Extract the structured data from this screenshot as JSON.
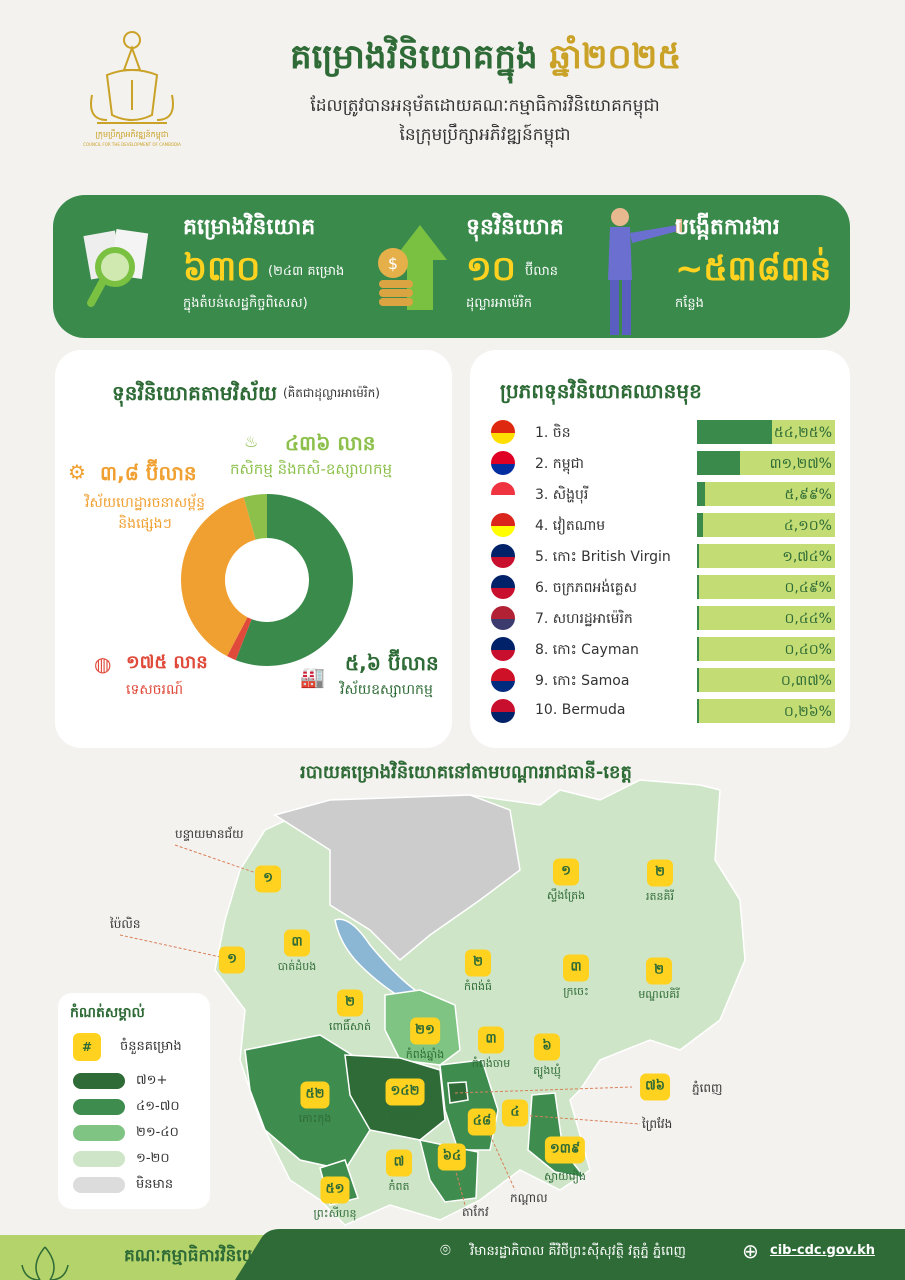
{
  "header": {
    "logo_text": "ក្រុមប្រឹក្សាអភិវឌ្ឍន៍កម្ពុជា",
    "logo_subtext": "COUNCIL FOR THE DEVELOPMENT OF CAMBODIA",
    "title": "គម្រោងវិនិយោគក្នុង",
    "title_year": "ឆ្នាំ២០២៥",
    "subtitle1": "ដែលត្រូវបានអនុម័តដោយគណៈកម្មាធិការវិនិយោគកម្ពុជា",
    "subtitle2": "នៃក្រុមប្រឹក្សាអភិវឌ្ឍន៍កម្ពុជា"
  },
  "stats": [
    {
      "heading": "គម្រោងវិនិយោគ",
      "value": "៦៣០",
      "unit": "(២៤៣ គម្រោង",
      "note": "ក្នុងតំបន់សេដ្ឋកិច្ចពិសេស)",
      "icon": "document-magnifier-icon"
    },
    {
      "heading": "ទុនវិនិយោគ",
      "value": "១០",
      "unit": "ប៊ីលាន",
      "note": "ដុល្លារអាម៉េរិក",
      "icon": "coins-arrow-up-icon"
    },
    {
      "heading": "បង្កើតការងារ",
      "value": "~៥៣៨៣ន់",
      "unit": "",
      "note": "កន្លែង",
      "icon": "businessman-icon"
    }
  ],
  "sector": {
    "title": "ទុនវិនិយោគតាមវិស័យ",
    "title_note": "(គិតជាដុល្លារអាម៉េរិក)",
    "items": [
      {
        "value_label": "៥,៦ ប៊ីលាន",
        "name": "វិស័យឧស្សាហកម្ម",
        "color": "#3a8a4c",
        "icon": "factory-icon"
      },
      {
        "value_label": "១៧៥ លាន",
        "name": "ទេសចរណ៍",
        "color": "#e04a3a",
        "icon": "globe-icon"
      },
      {
        "value_label": "៣,៨ ប៊ីលាន",
        "name": "វិស័យហេដ្ឋារចនាសម្ព័ន្ធ និងផ្សេងៗ",
        "color": "#f0a030",
        "icon": "gear-building-icon"
      },
      {
        "value_label": "៤៣៦ លាន",
        "name": "កសិកម្ម និងកសិ-ឧស្សាហកម្ម",
        "color": "#8cc04b",
        "icon": "plant-icon"
      }
    ]
  },
  "chart_data": {
    "type": "pie",
    "donut": true,
    "unit": "USD",
    "categories": [
      "វិស័យឧស្សាហកម្ម",
      "ទេសចរណ៍",
      "វិស័យហេដ្ឋារចនាសម្ព័ន្ធ និងផ្សេងៗ",
      "កសិកម្ម និងកសិ-ឧស្សាហកម្ម"
    ],
    "values": [
      5600000000,
      175000000,
      3800000000,
      436000000
    ]
  },
  "ranking": {
    "title": "ប្រភពទុនវិនិយោគឈានមុខ",
    "items": [
      {
        "label": "1. ចិន",
        "pct_label": "៥៤,២៥%",
        "pct": 54.25,
        "flag": "china-flag-icon",
        "colors": [
          "#de2910",
          "#ffde00"
        ]
      },
      {
        "label": "2. កម្ពុជា",
        "pct_label": "៣១,២៧%",
        "pct": 31.27,
        "flag": "cambodia-flag-icon",
        "colors": [
          "#e00025",
          "#032ea1"
        ]
      },
      {
        "label": "3. សិង្ហបុរី",
        "pct_label": "៥,៩៩%",
        "pct": 5.99,
        "flag": "singapore-flag-icon",
        "colors": [
          "#ef3340",
          "#ffffff"
        ]
      },
      {
        "label": "4. វៀតណាម",
        "pct_label": "៤,១០%",
        "pct": 4.1,
        "flag": "vietnam-flag-icon",
        "colors": [
          "#da251d",
          "#ffff00"
        ]
      },
      {
        "label": "5. កោះ British Virgin",
        "pct_label": "១,៧៤%",
        "pct": 1.74,
        "flag": "bvi-flag-icon",
        "colors": [
          "#012169",
          "#c8102e"
        ]
      },
      {
        "label": "6. ចក្រភពអង់គ្លេស",
        "pct_label": "០,៤៩%",
        "pct": 0.49,
        "flag": "uk-flag-icon",
        "colors": [
          "#012169",
          "#c8102e"
        ]
      },
      {
        "label": "7. សហរដ្ឋអាម៉េរិក",
        "pct_label": "០,៤៤%",
        "pct": 0.44,
        "flag": "usa-flag-icon",
        "colors": [
          "#b22234",
          "#3c3b6e"
        ]
      },
      {
        "label": "8. កោះ Cayman",
        "pct_label": "០,៤០%",
        "pct": 0.4,
        "flag": "cayman-flag-icon",
        "colors": [
          "#012169",
          "#c8102e"
        ]
      },
      {
        "label": "9. កោះ Samoa",
        "pct_label": "០,៣៧%",
        "pct": 0.37,
        "flag": "samoa-flag-icon",
        "colors": [
          "#ce1126",
          "#002b7f"
        ]
      },
      {
        "label": "10. Bermuda",
        "pct_label": "០,២៦%",
        "pct": 0.26,
        "flag": "bermuda-flag-icon",
        "colors": [
          "#c8102e",
          "#012169"
        ]
      }
    ]
  },
  "map": {
    "title": "របាយគម្រោងវិនិយោគនៅតាមបណ្ដាររាជធានី-ខេត្ត",
    "provinces": [
      {
        "name": "បន្ទាយមានជ័យ",
        "count": "១"
      },
      {
        "name": "ប៉ៃលិន",
        "count": "១"
      },
      {
        "name": "បាត់ដំបង",
        "count": "៣"
      },
      {
        "name": "ស្ទឹងត្រែង",
        "count": "១"
      },
      {
        "name": "រតនគិរី",
        "count": "២"
      },
      {
        "name": "កំពង់ធំ",
        "count": "២"
      },
      {
        "name": "ក្រចេះ",
        "count": "៣"
      },
      {
        "name": "មណ្ឌលគិរី",
        "count": "២"
      },
      {
        "name": "ពោធិ៍សាត់",
        "count": "២"
      },
      {
        "name": "កំពង់ឆ្នាំង",
        "count": "២១"
      },
      {
        "name": "កំពង់ចាម",
        "count": "៣"
      },
      {
        "name": "ត្បូងឃ្មុំ",
        "count": "៦"
      },
      {
        "name": "កោះកុង",
        "count": "៥២"
      },
      {
        "name": "កំពង់ស្ពឺ",
        "count": "១៤២"
      },
      {
        "name": "ភ្នំពេញ",
        "count": "៧៦"
      },
      {
        "name": "ព្រៃវែង",
        "count": "៤"
      },
      {
        "name": "កណ្ដាល",
        "count": "៤៨"
      },
      {
        "name": "ស្វាយរៀង",
        "count": "១៣៩"
      },
      {
        "name": "តាកែវ",
        "count": "៦៤"
      },
      {
        "name": "កំពត",
        "count": "៧"
      },
      {
        "name": "ព្រះសីហនុ",
        "count": "៥១"
      }
    ],
    "legend": {
      "title": "កំណត់សម្គាល់",
      "count_symbol": "#",
      "count_label": "ចំនួនគម្រោង",
      "ranges": [
        {
          "label": "៧១+",
          "color": "#2e6b36"
        },
        {
          "label": "៤១-៧០",
          "color": "#3f8c4f"
        },
        {
          "label": "២១-៤០",
          "color": "#7fc483"
        },
        {
          "label": "១-២០",
          "color": "#cfe5c8"
        },
        {
          "label": "មិនមាន",
          "color": "#dcdcdc"
        }
      ]
    }
  },
  "footer": {
    "org": "គណៈកម្មាធិការវិនិយោគកម្ពុជា",
    "address": "វិមានរដ្ឋាភិបាល គឺវិថីព្រះស៊ីសុវត្ថិ វត្តភ្នំ ភ្នំពេញ",
    "website": "cib-cdc.gov.kh"
  }
}
